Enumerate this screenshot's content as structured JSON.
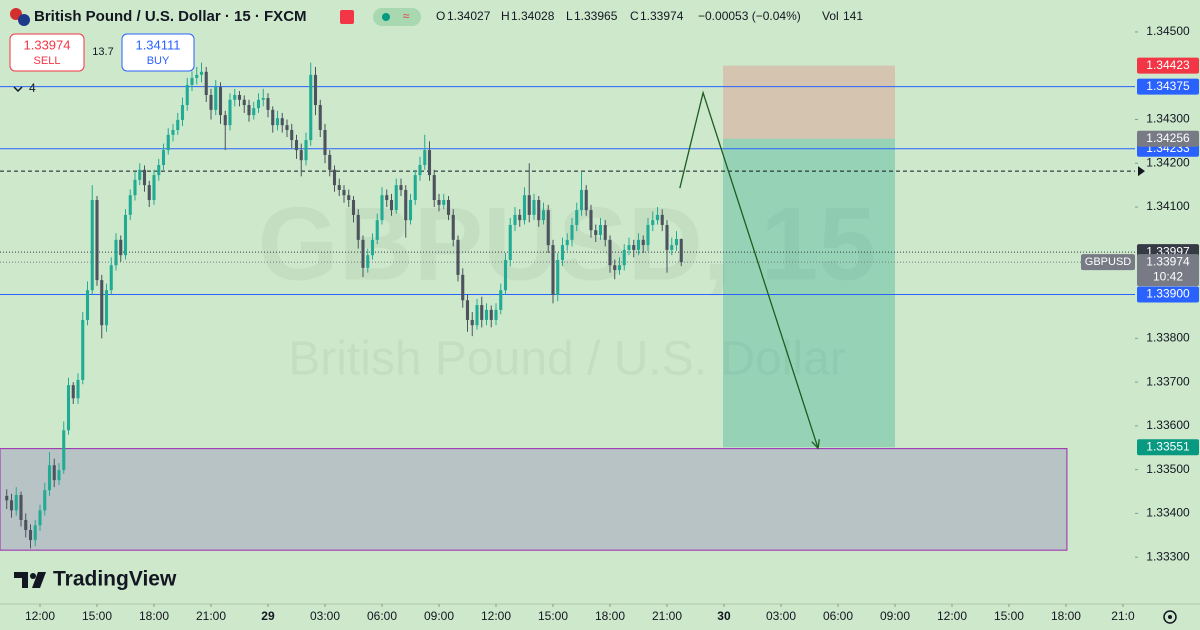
{
  "chart_data": {
    "type": "candlestick",
    "title": "British Pound / U.S. Dollar · 15 · FXCM",
    "ohlc_labels": [
      "O",
      "H",
      "L",
      "C"
    ],
    "change": "−0.00053 (−0.04%)",
    "volume_label": "Vol",
    "volume": 141,
    "sell": {
      "price": 1.33974,
      "label": "SELL"
    },
    "spread": 13.7,
    "buy": {
      "price": 1.34111,
      "label": "BUY"
    },
    "hidden_indicators": 4,
    "symbol": "GBPUSD",
    "countdown": "10:42",
    "watermark": {
      "symbol": "GBPUSD, 15",
      "description": "British Pound / U.S. Dollar"
    },
    "logo": "TradingView",
    "up_color": "#22ab94",
    "down_color": "#4c525e",
    "background": "#cde8cb",
    "grid": false,
    "xlim": [
      -8.42,
      230.53
    ],
    "ylim": [
      1.33193,
      1.34573
    ],
    "xticks": [
      {
        "value": 0,
        "label": "12:00"
      },
      {
        "value": 12,
        "label": "15:00"
      },
      {
        "value": 24,
        "label": "18:00"
      },
      {
        "value": 36,
        "label": "21:00"
      },
      {
        "value": 48,
        "label": "29"
      },
      {
        "value": 60,
        "label": "03:00"
      },
      {
        "value": 72,
        "label": "06:00"
      },
      {
        "value": 84,
        "label": "09:00"
      },
      {
        "value": 96,
        "label": "12:00"
      },
      {
        "value": 108,
        "label": "15:00"
      },
      {
        "value": 120,
        "label": "18:00"
      },
      {
        "value": 132,
        "label": "21:00"
      },
      {
        "value": 144,
        "label": "30"
      },
      {
        "value": 156,
        "label": "03:00"
      },
      {
        "value": 168,
        "label": "06:00"
      },
      {
        "value": 180,
        "label": "09:00"
      },
      {
        "value": 192,
        "label": "12:00"
      },
      {
        "value": 204,
        "label": "15:00"
      },
      {
        "value": 216,
        "label": "18:00"
      },
      {
        "value": 228,
        "label": "21:0"
      }
    ],
    "yticks": [
      {
        "value": 1.345,
        "label": "1.34500"
      },
      {
        "value": 1.343,
        "label": "1.34300"
      },
      {
        "value": 1.342,
        "label": "1.34200"
      },
      {
        "value": 1.341,
        "label": "1.34100"
      },
      {
        "value": 1.338,
        "label": "1.33800"
      },
      {
        "value": 1.337,
        "label": "1.33700"
      },
      {
        "value": 1.336,
        "label": "1.33600"
      },
      {
        "value": 1.335,
        "label": "1.33500"
      },
      {
        "value": 1.334,
        "label": "1.33400"
      },
      {
        "value": 1.333,
        "label": "1.33300"
      }
    ],
    "levels": [
      {
        "value": 1.34375,
        "color": "#2962ff",
        "style": "solid"
      },
      {
        "value": 1.34233,
        "color": "#2962ff",
        "style": "solid"
      },
      {
        "value": 1.339,
        "label": "1.33900",
        "color": "#2962ff",
        "style": "solid"
      },
      {
        "value": 1.33997,
        "color": "#363a45",
        "style": "dotted"
      }
    ],
    "alert_line": {
      "value": 1.34182,
      "color": "#131722"
    },
    "zone": {
      "x": [
        -8.42,
        216.2
      ],
      "y": [
        1.33316,
        1.33548
      ],
      "color": "#9c27b0"
    },
    "position": {
      "x": [
        143.8,
        180
      ],
      "entry": 1.34256,
      "stop": 1.34423,
      "target": 1.33551
    },
    "arrow": {
      "x": [
        134.7,
        139.6,
        163.8
      ],
      "y": [
        1.34143,
        1.34361,
        1.33549
      ]
    },
    "ohlc": [
      [
        1.3344,
        1.33455,
        1.3341,
        1.3343
      ],
      [
        1.3343,
        1.33445,
        1.3339,
        1.33407
      ],
      [
        1.33407,
        1.3346,
        1.33395,
        1.33442
      ],
      [
        1.33442,
        1.3345,
        1.3337,
        1.33385
      ],
      [
        1.33385,
        1.334,
        1.33345,
        1.33362
      ],
      [
        1.33362,
        1.33375,
        1.3332,
        1.33339
      ],
      [
        1.33339,
        1.33385,
        1.33325,
        1.33373
      ],
      [
        1.33373,
        1.3342,
        1.3336,
        1.33407
      ],
      [
        1.33407,
        1.3347,
        1.33395,
        1.33453
      ],
      [
        1.33453,
        1.3354,
        1.3344,
        1.3351
      ],
      [
        1.3351,
        1.33525,
        1.3346,
        1.33476
      ],
      [
        1.33476,
        1.33515,
        1.33465,
        1.33499
      ],
      [
        1.33499,
        1.3361,
        1.3349,
        1.3359
      ],
      [
        1.3359,
        1.3371,
        1.3358,
        1.33693
      ],
      [
        1.33693,
        1.337,
        1.3365,
        1.33663
      ],
      [
        1.33663,
        1.3372,
        1.3365,
        1.33705
      ],
      [
        1.33705,
        1.3386,
        1.33695,
        1.33842
      ],
      [
        1.33842,
        1.3393,
        1.3383,
        1.3391
      ],
      [
        1.3391,
        1.3415,
        1.339,
        1.34116
      ],
      [
        1.34116,
        1.34125,
        1.3392,
        1.33933
      ],
      [
        1.33933,
        1.33945,
        1.338,
        1.3383
      ],
      [
        1.3383,
        1.33925,
        1.33815,
        1.3391
      ],
      [
        1.3391,
        1.33985,
        1.339,
        1.33967
      ],
      [
        1.33967,
        1.3404,
        1.33955,
        1.34025
      ],
      [
        1.34025,
        1.34035,
        1.33975,
        1.3399
      ],
      [
        1.3399,
        1.34095,
        1.3398,
        1.34082
      ],
      [
        1.34082,
        1.3414,
        1.3407,
        1.34127
      ],
      [
        1.34127,
        1.3418,
        1.34115,
        1.34162
      ],
      [
        1.34162,
        1.342,
        1.3415,
        1.34185
      ],
      [
        1.34185,
        1.34195,
        1.34135,
        1.3415
      ],
      [
        1.3415,
        1.3416,
        1.341,
        1.34116
      ],
      [
        1.34116,
        1.34185,
        1.34105,
        1.34173
      ],
      [
        1.34173,
        1.3421,
        1.3416,
        1.34196
      ],
      [
        1.34196,
        1.34245,
        1.34185,
        1.3423
      ],
      [
        1.3423,
        1.3428,
        1.3422,
        1.34265
      ],
      [
        1.34265,
        1.3429,
        1.3425,
        1.34276
      ],
      [
        1.34276,
        1.34315,
        1.34265,
        1.34299
      ],
      [
        1.34299,
        1.3435,
        1.34285,
        1.34333
      ],
      [
        1.34333,
        1.34395,
        1.3432,
        1.34379
      ],
      [
        1.34379,
        1.3441,
        1.34365,
        1.34395
      ],
      [
        1.34395,
        1.3442,
        1.3438,
        1.34402
      ],
      [
        1.34402,
        1.3443,
        1.34385,
        1.34409
      ],
      [
        1.34409,
        1.3442,
        1.3434,
        1.34356
      ],
      [
        1.34356,
        1.3437,
        1.343,
        1.34322
      ],
      [
        1.34322,
        1.3439,
        1.3431,
        1.34374
      ],
      [
        1.34374,
        1.34385,
        1.3429,
        1.3431
      ],
      [
        1.3431,
        1.3432,
        1.3423,
        1.34287
      ],
      [
        1.34287,
        1.3436,
        1.34275,
        1.34345
      ],
      [
        1.34345,
        1.3437,
        1.3433,
        1.34356
      ],
      [
        1.34356,
        1.34365,
        1.3433,
        1.34345
      ],
      [
        1.34345,
        1.34355,
        1.34315,
        1.34333
      ],
      [
        1.34333,
        1.34345,
        1.34295,
        1.3431
      ],
      [
        1.3431,
        1.3434,
        1.343,
        1.34326
      ],
      [
        1.34326,
        1.3436,
        1.34315,
        1.34345
      ],
      [
        1.34345,
        1.3437,
        1.3433,
        1.34349
      ],
      [
        1.34349,
        1.3436,
        1.34305,
        1.34322
      ],
      [
        1.34322,
        1.3433,
        1.3427,
        1.34287
      ],
      [
        1.34287,
        1.3432,
        1.34275,
        1.34303
      ],
      [
        1.34303,
        1.34315,
        1.3427,
        1.34287
      ],
      [
        1.34287,
        1.343,
        1.3426,
        1.34276
      ],
      [
        1.34276,
        1.3429,
        1.34235,
        1.34253
      ],
      [
        1.34253,
        1.34265,
        1.3421,
        1.3423
      ],
      [
        1.3423,
        1.34245,
        1.3417,
        1.34207
      ],
      [
        1.34207,
        1.3427,
        1.34195,
        1.34253
      ],
      [
        1.34253,
        1.3443,
        1.3424,
        1.34402
      ],
      [
        1.34402,
        1.3442,
        1.3431,
        1.34333
      ],
      [
        1.34333,
        1.34345,
        1.3426,
        1.34276
      ],
      [
        1.34276,
        1.3429,
        1.342,
        1.34219
      ],
      [
        1.34219,
        1.3423,
        1.3417,
        1.34185
      ],
      [
        1.34185,
        1.34195,
        1.34135,
        1.3415
      ],
      [
        1.3415,
        1.34165,
        1.34125,
        1.34139
      ],
      [
        1.34139,
        1.3415,
        1.3411,
        1.34127
      ],
      [
        1.34127,
        1.3414,
        1.341,
        1.34116
      ],
      [
        1.34116,
        1.34125,
        1.34065,
        1.34082
      ],
      [
        1.34082,
        1.34095,
        1.34005,
        1.34025
      ],
      [
        1.34025,
        1.34035,
        1.3394,
        1.33961
      ],
      [
        1.33961,
        1.34005,
        1.3395,
        1.3399
      ],
      [
        1.3399,
        1.3404,
        1.3398,
        1.34025
      ],
      [
        1.34025,
        1.34085,
        1.34015,
        1.3407
      ],
      [
        1.3407,
        1.34145,
        1.3406,
        1.34127
      ],
      [
        1.34127,
        1.3414,
        1.341,
        1.34116
      ],
      [
        1.34116,
        1.3413,
        1.3408,
        1.34093
      ],
      [
        1.34093,
        1.34165,
        1.34085,
        1.3415
      ],
      [
        1.3415,
        1.34165,
        1.34125,
        1.34139
      ],
      [
        1.34139,
        1.3415,
        1.3403,
        1.3407
      ],
      [
        1.3407,
        1.3413,
        1.3406,
        1.34116
      ],
      [
        1.34116,
        1.34185,
        1.34105,
        1.34173
      ],
      [
        1.34173,
        1.34215,
        1.3416,
        1.34196
      ],
      [
        1.34196,
        1.34265,
        1.34185,
        1.3423
      ],
      [
        1.3423,
        1.3425,
        1.3416,
        1.34173
      ],
      [
        1.34173,
        1.34185,
        1.341,
        1.34116
      ],
      [
        1.34116,
        1.3413,
        1.3409,
        1.34105
      ],
      [
        1.34105,
        1.3413,
        1.34095,
        1.34116
      ],
      [
        1.34116,
        1.34125,
        1.3407,
        1.34082
      ],
      [
        1.34082,
        1.34095,
        1.3401,
        1.34025
      ],
      [
        1.34025,
        1.34035,
        1.3393,
        1.33945
      ],
      [
        1.33945,
        1.3396,
        1.3387,
        1.33887
      ],
      [
        1.33887,
        1.339,
        1.33815,
        1.33842
      ],
      [
        1.33842,
        1.3386,
        1.33805,
        1.3383
      ],
      [
        1.3383,
        1.3389,
        1.3382,
        1.33876
      ],
      [
        1.33876,
        1.33895,
        1.33825,
        1.33842
      ],
      [
        1.33842,
        1.3388,
        1.3383,
        1.33865
      ],
      [
        1.33865,
        1.33875,
        1.33825,
        1.33842
      ],
      [
        1.33842,
        1.3388,
        1.3383,
        1.33865
      ],
      [
        1.33865,
        1.33925,
        1.33855,
        1.3391
      ],
      [
        1.3391,
        1.33995,
        1.339,
        1.33979
      ],
      [
        1.33979,
        1.34075,
        1.33965,
        1.34059
      ],
      [
        1.34059,
        1.341,
        1.34045,
        1.34082
      ],
      [
        1.34082,
        1.34095,
        1.34055,
        1.3407
      ],
      [
        1.3407,
        1.34145,
        1.3406,
        1.34127
      ],
      [
        1.34127,
        1.342,
        1.34065,
        1.34082
      ],
      [
        1.34082,
        1.3413,
        1.3407,
        1.34116
      ],
      [
        1.34116,
        1.34125,
        1.34055,
        1.3407
      ],
      [
        1.3407,
        1.3411,
        1.3406,
        1.34093
      ],
      [
        1.34093,
        1.34105,
        1.33995,
        1.34013
      ],
      [
        1.34013,
        1.34025,
        1.3388,
        1.33899
      ],
      [
        1.33899,
        1.33995,
        1.33885,
        1.33979
      ],
      [
        1.33979,
        1.3403,
        1.33965,
        1.34013
      ],
      [
        1.34013,
        1.3404,
        1.34,
        1.34025
      ],
      [
        1.34025,
        1.34075,
        1.3401,
        1.34059
      ],
      [
        1.34059,
        1.3411,
        1.34045,
        1.34093
      ],
      [
        1.34093,
        1.3418,
        1.3408,
        1.34139
      ],
      [
        1.34139,
        1.3415,
        1.3408,
        1.34093
      ],
      [
        1.34093,
        1.34105,
        1.3403,
        1.34047
      ],
      [
        1.34047,
        1.3406,
        1.3402,
        1.34036
      ],
      [
        1.34036,
        1.34075,
        1.34025,
        1.34059
      ],
      [
        1.34059,
        1.3407,
        1.3401,
        1.34025
      ],
      [
        1.34025,
        1.34035,
        1.3395,
        1.33967
      ],
      [
        1.33967,
        1.3398,
        1.33935,
        1.33956
      ],
      [
        1.33956,
        1.33985,
        1.33945,
        1.33967
      ],
      [
        1.33967,
        1.34015,
        1.33955,
        1.34002
      ],
      [
        1.34002,
        1.3403,
        1.3399,
        1.34013
      ],
      [
        1.34013,
        1.34025,
        1.33985,
        1.34002
      ],
      [
        1.34002,
        1.3404,
        1.3399,
        1.34025
      ],
      [
        1.34025,
        1.34035,
        1.33995,
        1.34013
      ],
      [
        1.34013,
        1.34075,
        1.34,
        1.34059
      ],
      [
        1.34059,
        1.3409,
        1.34045,
        1.3407
      ],
      [
        1.3407,
        1.341,
        1.3406,
        1.34082
      ],
      [
        1.34082,
        1.34095,
        1.34045,
        1.34059
      ],
      [
        1.34059,
        1.3407,
        1.3395,
        1.34002
      ],
      [
        1.34002,
        1.3403,
        1.3399,
        1.34013
      ],
      [
        1.34013,
        1.34045,
        1.34,
        1.34027
      ],
      [
        1.34027,
        1.34028,
        1.33965,
        1.33974
      ]
    ]
  }
}
